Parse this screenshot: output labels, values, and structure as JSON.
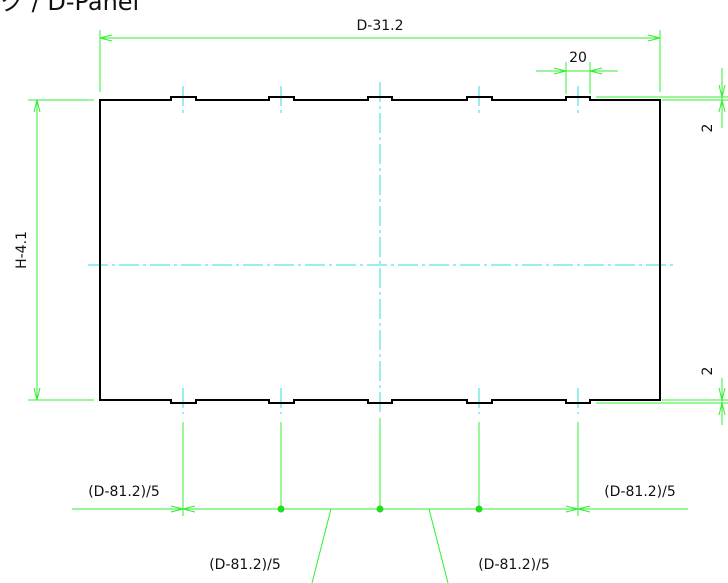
{
  "title": "ク / D-Panel",
  "dimensions": {
    "overall_width": "D-31.2",
    "notch_width": "20",
    "height": "H-4.1",
    "top_notch_depth": "2",
    "bottom_notch_depth": "2",
    "left_spacing": "(D-81.2)/5",
    "right_spacing": "(D-81.2)/5",
    "inner_spacing_left": "(D-81.2)/5",
    "inner_spacing_right": "(D-81.2)/5"
  },
  "colors": {
    "dimension_line": "#33ee33",
    "center_line": "#33dddd",
    "outline": "#000000"
  }
}
